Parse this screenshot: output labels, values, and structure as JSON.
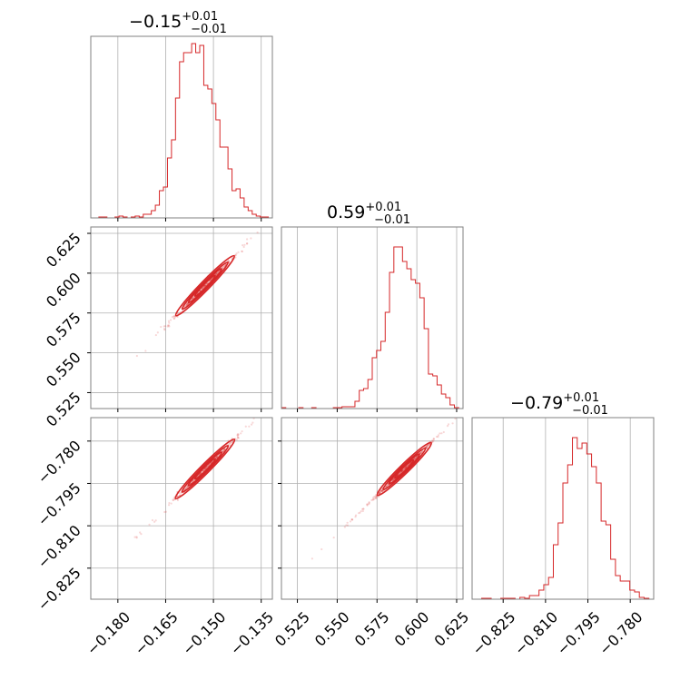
{
  "chart_data": {
    "type": "corner",
    "color": "#d62728",
    "grid": true,
    "parameters": [
      {
        "title_value": "−0.15",
        "title_plus": "+0.01",
        "title_minus": "−0.01",
        "range": [
          -0.1885,
          -0.1315
        ],
        "ticks": [
          -0.18,
          -0.165,
          -0.15,
          -0.135
        ],
        "tick_labels": [
          "−0.180",
          "−0.165",
          "−0.150",
          "−0.135"
        ]
      },
      {
        "title_value": "0.59",
        "title_plus": "+0.01",
        "title_minus": "−0.01",
        "range": [
          0.515,
          0.629
        ],
        "ticks": [
          0.525,
          0.55,
          0.575,
          0.6,
          0.625
        ],
        "tick_labels": [
          "0.525",
          "0.550",
          "0.575",
          "0.600",
          "0.625"
        ]
      },
      {
        "title_value": "−0.79",
        "title_plus": "+0.01",
        "title_minus": "−0.01",
        "range": [
          -0.836,
          -0.7717
        ],
        "ticks": [
          -0.825,
          -0.81,
          -0.795,
          -0.78
        ],
        "tick_labels": [
          "−0.825",
          "−0.810",
          "−0.795",
          "−0.780"
        ]
      }
    ],
    "histograms": [
      {
        "param": 0,
        "counts": [
          0,
          0,
          0.005,
          0.005,
          0,
          0,
          0.005,
          0.01,
          0.005,
          0,
          0.005,
          0.01,
          0.005,
          0.02,
          0.02,
          0.04,
          0.07,
          0.15,
          0.17,
          0.33,
          0.43,
          0.66,
          0.86,
          0.91,
          0.91,
          0.96,
          0.91,
          0.95,
          0.73,
          0.71,
          0.63,
          0.54,
          0.39,
          0.39,
          0.27,
          0.15,
          0.16,
          0.11,
          0.06,
          0.04,
          0.02,
          0.01,
          0.005,
          0.005,
          0
        ]
      },
      {
        "param": 1,
        "counts": [
          0.005,
          0,
          0,
          0,
          0.005,
          0,
          0,
          0.005,
          0,
          0,
          0,
          0,
          0.005,
          0.005,
          0.01,
          0.01,
          0.01,
          0.04,
          0.1,
          0.11,
          0.16,
          0.28,
          0.32,
          0.37,
          0.53,
          0.75,
          0.89,
          0.89,
          0.81,
          0.77,
          0.71,
          0.69,
          0.61,
          0.44,
          0.19,
          0.18,
          0.13,
          0.08,
          0.06,
          0.02,
          0.005,
          0
        ]
      },
      {
        "param": 2,
        "counts": [
          0,
          0,
          0.005,
          0.005,
          0,
          0,
          0.005,
          0.005,
          0.005,
          0,
          0.01,
          0.005,
          0.02,
          0.02,
          0.05,
          0.08,
          0.12,
          0.3,
          0.42,
          0.64,
          0.74,
          0.89,
          0.83,
          0.86,
          0.8,
          0.73,
          0.64,
          0.43,
          0.41,
          0.22,
          0.13,
          0.1,
          0.1,
          0.05,
          0.04,
          0.01,
          0.005,
          0
        ]
      }
    ],
    "scatter_panels": [
      {
        "x_param": 0,
        "y_param": 1,
        "center": [
          -0.1532,
          0.591
        ],
        "slope": 2.05,
        "spread": 0.0011
      },
      {
        "x_param": 0,
        "y_param": 2,
        "center": [
          -0.1532,
          -0.7905
        ],
        "slope": 1.13,
        "spread": 0.0007
      },
      {
        "x_param": 1,
        "y_param": 2,
        "center": [
          0.591,
          -0.7905
        ],
        "slope": 0.55,
        "spread": 0.00035
      }
    ]
  }
}
